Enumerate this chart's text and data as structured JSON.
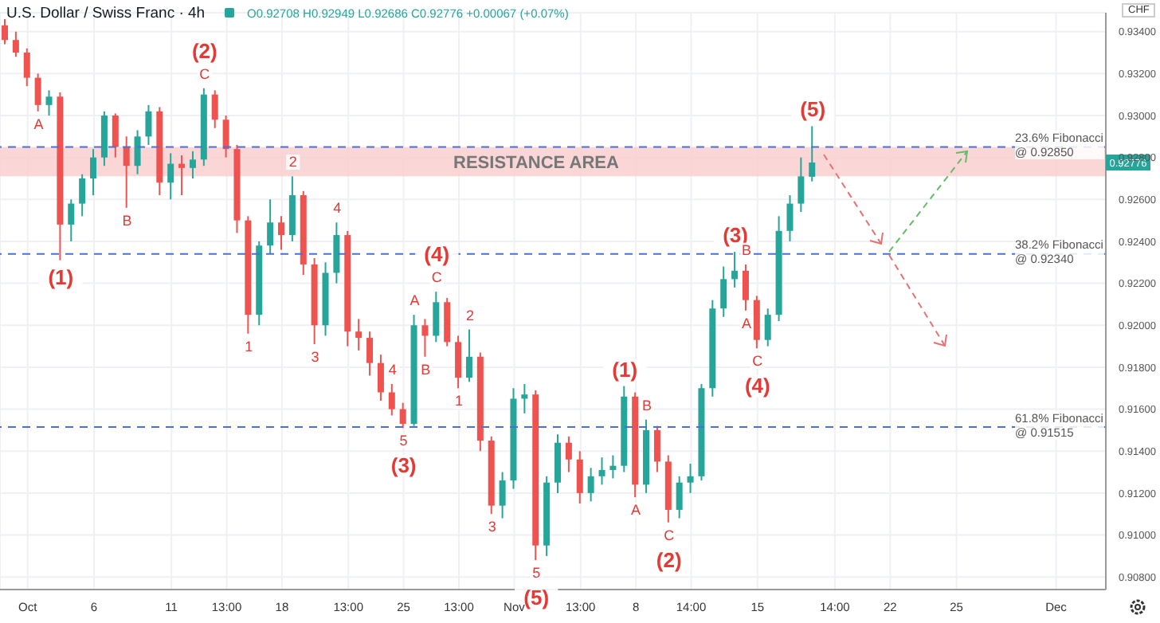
{
  "chart_data": {
    "type": "candlestick",
    "title": "U.S. Dollar / Swiss Franc · 4h",
    "subtitle": "O0.92708 H0.92949 L0.92686 C0.92776 +0.00067 (+0.07%)",
    "categories": [
      null,
      null,
      "Oct",
      null,
      null,
      null,
      null,
      null,
      "6",
      null,
      null,
      null,
      null,
      null,
      null,
      "11",
      null,
      null,
      null,
      null,
      "13:00",
      null,
      null,
      null,
      null,
      "18",
      null,
      null,
      null,
      null,
      null,
      "13:00",
      null,
      null,
      null,
      null,
      "25",
      null,
      null,
      null,
      null,
      "13:00",
      null,
      null,
      null,
      null,
      "Nov",
      null,
      null,
      null,
      null,
      null,
      "13:00",
      null,
      null,
      null,
      null,
      "8",
      null,
      null,
      null,
      null,
      "14:00",
      null,
      null,
      null,
      null,
      null,
      "15",
      null,
      null,
      null,
      null,
      null,
      null,
      "14:00",
      null,
      null,
      null,
      null,
      "22",
      null,
      null,
      null,
      null,
      null,
      "25",
      null,
      null,
      null,
      null,
      null,
      null,
      null,
      null,
      "Dec",
      null,
      null,
      null,
      null
    ],
    "ohlc": [
      [
        0.9343,
        0.9346,
        0.9334,
        0.9336
      ],
      [
        0.9336,
        0.934,
        0.9328,
        0.933
      ],
      [
        0.933,
        0.9332,
        0.9314,
        0.9318
      ],
      [
        0.9318,
        0.932,
        0.9302,
        0.9305
      ],
      [
        0.9305,
        0.9312,
        0.93,
        0.9309
      ],
      [
        0.9309,
        0.9311,
        0.9231,
        0.9248
      ],
      [
        0.9248,
        0.926,
        0.924,
        0.9258
      ],
      [
        0.9258,
        0.9272,
        0.9252,
        0.927
      ],
      [
        0.927,
        0.9284,
        0.9262,
        0.928
      ],
      [
        0.928,
        0.9302,
        0.9276,
        0.93
      ],
      [
        0.93,
        0.9301,
        0.928,
        0.9285
      ],
      [
        0.9285,
        0.929,
        0.9256,
        0.9276
      ],
      [
        0.9276,
        0.9293,
        0.9272,
        0.929
      ],
      [
        0.929,
        0.9305,
        0.9286,
        0.9302
      ],
      [
        0.9302,
        0.9304,
        0.9262,
        0.9268
      ],
      [
        0.9268,
        0.9282,
        0.926,
        0.9277
      ],
      [
        0.9277,
        0.9281,
        0.9262,
        0.9275
      ],
      [
        0.9275,
        0.9283,
        0.927,
        0.9279
      ],
      [
        0.9279,
        0.9313,
        0.9276,
        0.931
      ],
      [
        0.931,
        0.9312,
        0.9294,
        0.9298
      ],
      [
        0.9298,
        0.93,
        0.928,
        0.9284
      ],
      [
        0.9284,
        0.9286,
        0.9244,
        0.925
      ],
      [
        0.925,
        0.9252,
        0.9196,
        0.9205
      ],
      [
        0.9205,
        0.924,
        0.92,
        0.9238
      ],
      [
        0.9238,
        0.926,
        0.9234,
        0.9249
      ],
      [
        0.9249,
        0.9252,
        0.9236,
        0.9243
      ],
      [
        0.9243,
        0.9271,
        0.924,
        0.9262
      ],
      [
        0.9262,
        0.9264,
        0.9224,
        0.9229
      ],
      [
        0.9229,
        0.9232,
        0.9191,
        0.92
      ],
      [
        0.92,
        0.923,
        0.9195,
        0.9225
      ],
      [
        0.9225,
        0.9249,
        0.922,
        0.9243
      ],
      [
        0.9243,
        0.9245,
        0.919,
        0.9197
      ],
      [
        0.9197,
        0.9203,
        0.9188,
        0.9194
      ],
      [
        0.9194,
        0.9197,
        0.9176,
        0.9182
      ],
      [
        0.9182,
        0.9186,
        0.9164,
        0.9168
      ],
      [
        0.9168,
        0.9172,
        0.9157,
        0.916
      ],
      [
        0.916,
        0.9163,
        0.9151,
        0.9153
      ],
      [
        0.9153,
        0.9205,
        0.9152,
        0.92
      ],
      [
        0.92,
        0.9203,
        0.9185,
        0.9195
      ],
      [
        0.9195,
        0.9216,
        0.9192,
        0.9211
      ],
      [
        0.9211,
        0.9213,
        0.919,
        0.9192
      ],
      [
        0.9192,
        0.9195,
        0.917,
        0.9175
      ],
      [
        0.9175,
        0.9198,
        0.9173,
        0.9185
      ],
      [
        0.9185,
        0.9187,
        0.914,
        0.9145
      ],
      [
        0.9145,
        0.9147,
        0.911,
        0.9114
      ],
      [
        0.9114,
        0.913,
        0.9108,
        0.9126
      ],
      [
        0.9126,
        0.917,
        0.9122,
        0.9165
      ],
      [
        0.9165,
        0.9172,
        0.9158,
        0.9167
      ],
      [
        0.9167,
        0.9169,
        0.9088,
        0.9095
      ],
      [
        0.9095,
        0.9128,
        0.909,
        0.9125
      ],
      [
        0.9125,
        0.9148,
        0.912,
        0.9144
      ],
      [
        0.9144,
        0.9147,
        0.913,
        0.9136
      ],
      [
        0.9136,
        0.914,
        0.9115,
        0.912
      ],
      [
        0.912,
        0.9132,
        0.9116,
        0.9128
      ],
      [
        0.9128,
        0.9137,
        0.9124,
        0.9131
      ],
      [
        0.9131,
        0.9138,
        0.9127,
        0.9133
      ],
      [
        0.9133,
        0.9171,
        0.913,
        0.9166
      ],
      [
        0.9166,
        0.9168,
        0.9118,
        0.9124
      ],
      [
        0.9124,
        0.9155,
        0.912,
        0.915
      ],
      [
        0.915,
        0.9152,
        0.913,
        0.9135
      ],
      [
        0.9135,
        0.9138,
        0.9106,
        0.9112
      ],
      [
        0.9112,
        0.9128,
        0.9108,
        0.9125
      ],
      [
        0.9125,
        0.9134,
        0.912,
        0.9128
      ],
      [
        0.9128,
        0.9172,
        0.9126,
        0.917
      ],
      [
        0.917,
        0.9212,
        0.9166,
        0.9208
      ],
      [
        0.9208,
        0.9228,
        0.9204,
        0.9222
      ],
      [
        0.9222,
        0.9235,
        0.9218,
        0.9226
      ],
      [
        0.9226,
        0.9229,
        0.9207,
        0.9212
      ],
      [
        0.9212,
        0.9214,
        0.9189,
        0.9193
      ],
      [
        0.9193,
        0.9208,
        0.919,
        0.9205
      ],
      [
        0.9205,
        0.9252,
        0.9202,
        0.9245
      ],
      [
        0.9245,
        0.9262,
        0.924,
        0.9258
      ],
      [
        0.9258,
        0.928,
        0.9254,
        0.9271
      ],
      [
        0.92708,
        0.92949,
        0.92686,
        0.92776
      ],
      null,
      null,
      null,
      null,
      null,
      null,
      null,
      null,
      null,
      null,
      null,
      null,
      null,
      null,
      null,
      null,
      null,
      null,
      null,
      null,
      null,
      null,
      null,
      null,
      null,
      null
    ],
    "ylim": [
      0.9074,
      0.9349
    ],
    "yticks": [
      {
        "value": 0.908,
        "label": "0.90800"
      },
      {
        "value": 0.91,
        "label": "0.91000"
      },
      {
        "value": 0.912,
        "label": "0.91200"
      },
      {
        "value": 0.914,
        "label": "0.91400"
      },
      {
        "value": 0.916,
        "label": "0.91600"
      },
      {
        "value": 0.918,
        "label": "0.91800"
      },
      {
        "value": 0.92,
        "label": "0.92000"
      },
      {
        "value": 0.922,
        "label": "0.92200"
      },
      {
        "value": 0.924,
        "label": "0.92400"
      },
      {
        "value": 0.926,
        "label": "0.92600"
      },
      {
        "value": 0.928,
        "label": "0.92800"
      },
      {
        "value": 0.93,
        "label": "0.93000"
      },
      {
        "value": 0.932,
        "label": "0.93200"
      },
      {
        "value": 0.934,
        "label": "0.93400"
      }
    ],
    "grid": true,
    "ref_lines": [
      {
        "axis": "y",
        "value": 0.9285,
        "label": "23.6% Fibonacci @ 0.92850",
        "color": "#4a6fd8",
        "line_style": "dashed"
      },
      {
        "axis": "y",
        "value": 0.9234,
        "label": "38.2% Fibonacci @ 0.92340",
        "color": "#4a6fd8",
        "line_style": "dashed"
      },
      {
        "axis": "y",
        "value": 0.91515,
        "label": "61.8% Fibonacci @ 0.91515",
        "color": "#4a6fd8",
        "line_style": "dashed"
      }
    ],
    "bands": [
      {
        "axis": "y",
        "from": 0.9271,
        "to": 0.9285,
        "label": "RESISTANCE AREA",
        "color": "#f9cfcf"
      }
    ],
    "annotations": [
      "CHF",
      {
        "text": "0.92776",
        "y": 0.92776
      },
      {
        "text": "(1)",
        "y": 0.9231
      },
      {
        "text": "A",
        "y": 0.9302
      },
      {
        "text": "B",
        "y": 0.9256
      },
      {
        "text": "C",
        "y": 0.9313
      },
      {
        "text": "(2)",
        "y": 0.9313
      },
      {
        "text": "1",
        "y": 0.9196
      },
      {
        "text": "2",
        "y": 0.9271
      },
      {
        "text": "3",
        "y": 0.9191
      },
      {
        "text": "4",
        "y": 0.9249
      },
      {
        "text": "5",
        "y": 0.9151
      },
      {
        "text": "(3)",
        "y": 0.9151
      },
      {
        "text": "A",
        "y": 0.9205
      },
      {
        "text": "B",
        "y": 0.9185
      },
      {
        "text": "C",
        "y": 0.9216
      },
      {
        "text": "(4)",
        "y": 0.9216
      },
      {
        "text": "1",
        "y": 0.917
      },
      {
        "text": "2",
        "y": 0.9198
      },
      {
        "text": "3",
        "y": 0.911
      },
      {
        "text": "4",
        "y": 0.9172
      },
      {
        "text": "5",
        "y": 0.9088
      },
      {
        "text": "(5)",
        "y": 0.9088
      },
      {
        "text": "(1)",
        "y": 0.9171
      },
      {
        "text": "A",
        "y": 0.9118
      },
      {
        "text": "B",
        "y": 0.9155
      },
      {
        "text": "C",
        "y": 0.9106
      },
      {
        "text": "(2)",
        "y": 0.9106
      },
      {
        "text": "(3)",
        "y": 0.9235
      },
      {
        "text": "A",
        "y": 0.9207
      },
      {
        "text": "B",
        "y": 0.9229
      },
      {
        "text": "C",
        "y": 0.9189
      },
      {
        "text": "(4)",
        "y": 0.9189
      },
      {
        "text": "(5)",
        "y": 0.92949
      }
    ]
  }
}
